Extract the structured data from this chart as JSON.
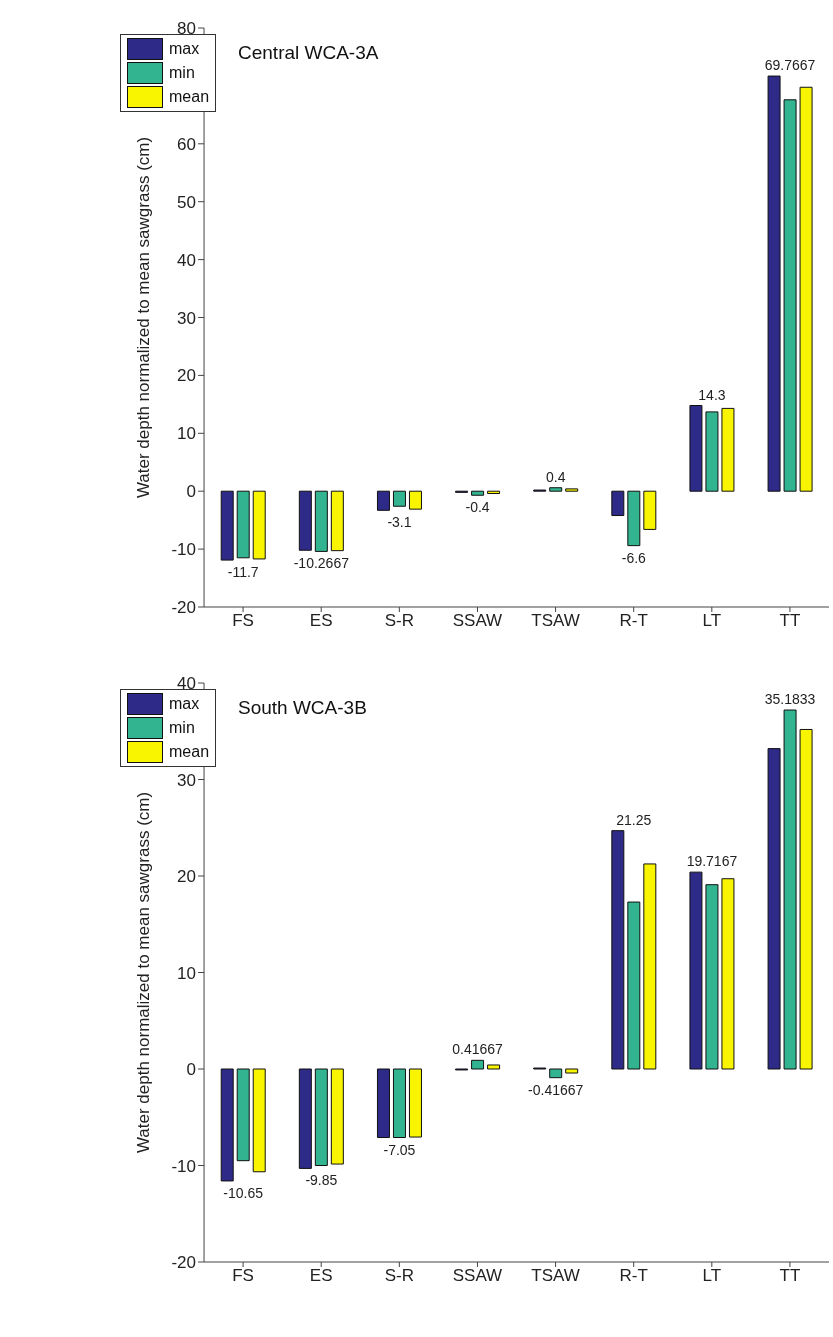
{
  "chart_data": [
    {
      "type": "bar",
      "title": "Central WCA-3A",
      "ylabel": "Water depth normalized to mean sawgrass (cm)",
      "categories": [
        "FS",
        "ES",
        "S-R",
        "SSAW",
        "TSAW",
        "R-T",
        "LT",
        "TT"
      ],
      "series": [
        {
          "name": "max",
          "color": "#2e2a87",
          "values": [
            -11.9,
            -10.2,
            -3.3,
            -0.2,
            0.2,
            -4.2,
            14.8,
            71.7
          ]
        },
        {
          "name": "min",
          "color": "#31b48f",
          "values": [
            -11.5,
            -10.4,
            -2.6,
            -0.7,
            0.6,
            -9.4,
            13.7,
            67.6
          ]
        },
        {
          "name": "mean",
          "color": "#f9f500",
          "values": [
            -11.7,
            -10.2667,
            -3.1,
            -0.4,
            0.4,
            -6.6,
            14.3,
            69.7667
          ],
          "value_labels": [
            "-11.7",
            "-10.2667",
            "-3.1",
            "-0.4",
            "0.4",
            "-6.6",
            "14.3",
            "69.7667"
          ]
        }
      ],
      "ylim": [
        -20,
        80
      ],
      "yticks": [
        -20,
        -10,
        0,
        10,
        20,
        30,
        40,
        50,
        60,
        70,
        80
      ],
      "legend": "top left"
    },
    {
      "type": "bar",
      "title": "South WCA-3B",
      "ylabel": "Water depth normalized to mean sawgrass (cm)",
      "categories": [
        "FS",
        "ES",
        "S-R",
        "SSAW",
        "TSAW",
        "R-T",
        "LT",
        "TT"
      ],
      "series": [
        {
          "name": "max",
          "color": "#2e2a87",
          "values": [
            -11.6,
            -10.3,
            -7.1,
            -0.1,
            0.1,
            24.7,
            20.4,
            33.2
          ]
        },
        {
          "name": "min",
          "color": "#31b48f",
          "values": [
            -9.5,
            -10.0,
            -7.1,
            0.9,
            -0.9,
            17.3,
            19.1,
            37.2
          ]
        },
        {
          "name": "mean",
          "color": "#f9f500",
          "values": [
            -10.65,
            -9.85,
            -7.05,
            0.41667,
            -0.41667,
            21.25,
            19.7167,
            35.1833
          ],
          "value_labels": [
            "-10.65",
            "-9.85",
            "-7.05",
            "0.41667",
            "-0.41667",
            "21.25",
            "19.7167",
            "35.1833"
          ]
        }
      ],
      "ylim": [
        -20,
        40
      ],
      "yticks": [
        -20,
        -10,
        0,
        10,
        20,
        30,
        40
      ],
      "legend": "top left"
    }
  ]
}
